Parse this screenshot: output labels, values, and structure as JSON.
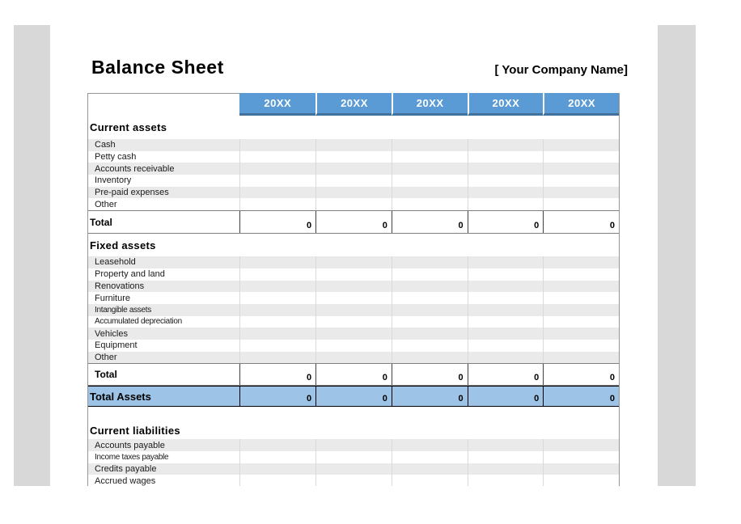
{
  "page": {
    "title": "Balance Sheet",
    "company": "[ Your Company Name]"
  },
  "colors": {
    "header_blue": "#5b9bd5",
    "header_blue_border": "#41719c",
    "total_assets_blue": "#9dc3e6",
    "row_stripe": "#eaeaea",
    "side_bar_gray": "#d8d8d8"
  },
  "table": {
    "year_headers": [
      "20XX",
      "20XX",
      "20XX",
      "20XX",
      "20XX"
    ],
    "sections": [
      {
        "heading": "Current assets",
        "rows": [
          "Cash",
          "Petty cash",
          "Accounts receivable",
          "Inventory",
          "Pre-paid expenses",
          "Other"
        ],
        "total_label": "Total",
        "total_values": [
          "0",
          "0",
          "0",
          "0",
          "0"
        ]
      },
      {
        "heading": "Fixed assets",
        "rows": [
          "Leasehold",
          "Property and land",
          "Renovations",
          "Furniture",
          "Intangible assets",
          "Accumulated depreciation",
          "Vehicles",
          "Equipment",
          "Other"
        ],
        "total_label": "Total",
        "total_values": [
          "0",
          "0",
          "0",
          "0",
          "0"
        ]
      }
    ],
    "grand_total": {
      "label": "Total Assets",
      "values": [
        "0",
        "0",
        "0",
        "0",
        "0"
      ]
    },
    "liabilities": {
      "heading": "Current liabilities",
      "rows": [
        "Accounts payable",
        "Income taxes payable",
        "Credits payable",
        "Accrued wages"
      ]
    }
  }
}
